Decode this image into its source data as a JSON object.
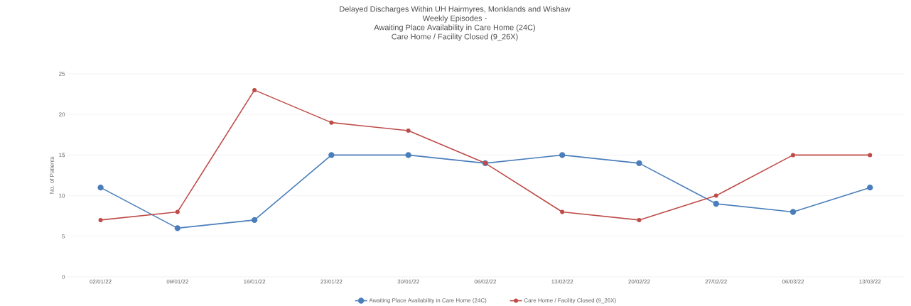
{
  "chart_data": {
    "type": "line",
    "title": [
      "Delayed Discharges Within UH Hairmyres, Monklands and Wishaw",
      "Weekly Episodes -",
      "Awaiting Place Availability in Care Home (24C)",
      "Care Home / Facility Closed (9_26X)"
    ],
    "ylabel": "No. of Patients",
    "categories": [
      "02/01/22",
      "09/01/22",
      "16/01/22",
      "23/01/22",
      "30/01/22",
      "06/02/22",
      "13/02/22",
      "20/02/22",
      "27/02/22",
      "06/03/22",
      "13/03/22"
    ],
    "series": [
      {
        "name": "Awaiting Place Availability in Care Home (24C)",
        "color": "#4a7ebb",
        "values": [
          11,
          6,
          7,
          15,
          15,
          14,
          15,
          14,
          9,
          8,
          11
        ]
      },
      {
        "name": "Care Home / Facility Closed (9_26X)",
        "color": "#be4b48",
        "values": [
          7,
          8,
          23,
          19,
          18,
          14,
          8,
          7,
          10,
          15,
          15
        ]
      }
    ],
    "ylim": [
      0,
      25
    ],
    "yticks": [
      0,
      5,
      10,
      15,
      20,
      25
    ],
    "grid": "y",
    "legend": "bottom",
    "marker": "circle",
    "line_style": "solid"
  }
}
